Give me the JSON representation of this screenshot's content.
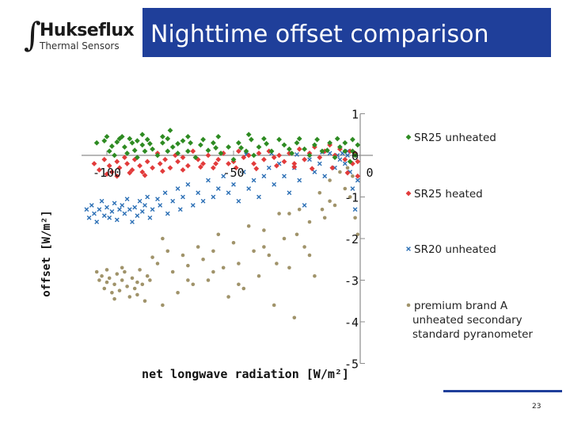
{
  "header": {
    "logo_name": "Hukseflux",
    "logo_sub": "Thermal Sensors",
    "title": "Nighttime offset comparison"
  },
  "page_number": "23",
  "colors": {
    "title_bar": "#1f3f9a",
    "sr25_unheated": "#2e8b22",
    "sr25_heated": "#e23b3b",
    "sr20_unheated": "#2b6fb5",
    "brand_a": "#a0936a"
  },
  "chart_data": {
    "type": "scatter",
    "title": "",
    "xlabel": "net longwave radiation [W/m²]",
    "ylabel": "offset [W/m²]",
    "xlim": [
      -110,
      5
    ],
    "ylim": [
      -5,
      1
    ],
    "x_ticks": [
      -100,
      -50,
      0
    ],
    "x_tick_labels": [
      "-100",
      "-50",
      "0"
    ],
    "y_ticks": [
      1,
      0,
      -1,
      -2,
      -3,
      -4,
      -5
    ],
    "y_tick_labels": [
      "1",
      "0",
      "-1",
      "-2",
      "-3",
      "-4",
      "-5"
    ],
    "grid": false,
    "legend_position": "right",
    "series": [
      {
        "name": "SR25 unheated",
        "marker": "diamond",
        "color": "#2e8b22",
        "points": [
          [
            -104,
            0.3
          ],
          [
            -101,
            0.35
          ],
          [
            -99,
            0.1
          ],
          [
            -97,
            0.0
          ],
          [
            -95,
            0.4
          ],
          [
            -93,
            0.2
          ],
          [
            -92,
            0.05
          ],
          [
            -90,
            0.3
          ],
          [
            -89,
            0.12
          ],
          [
            -88,
            -0.05
          ],
          [
            -86,
            0.25
          ],
          [
            -85,
            0.1
          ],
          [
            -84,
            0.38
          ],
          [
            -82,
            0.15
          ],
          [
            -80,
            0.0
          ],
          [
            -78,
            0.3
          ],
          [
            -76,
            0.1
          ],
          [
            -75,
            0.6
          ],
          [
            -74,
            0.2
          ],
          [
            -72,
            0.05
          ],
          [
            -70,
            0.35
          ],
          [
            -68,
            0.1
          ],
          [
            -65,
            -0.05
          ],
          [
            -63,
            0.25
          ],
          [
            -60,
            0.12
          ],
          [
            -58,
            0.3
          ],
          [
            -55,
            0.05
          ],
          [
            -52,
            0.2
          ],
          [
            -50,
            -0.1
          ],
          [
            -48,
            0.3
          ],
          [
            -45,
            0.1
          ],
          [
            -42,
            0.0
          ],
          [
            -40,
            0.2
          ],
          [
            -38,
            0.4
          ],
          [
            -35,
            0.1
          ],
          [
            -30,
            0.25
          ],
          [
            -27,
            0.05
          ],
          [
            -25,
            0.3
          ],
          [
            -22,
            0.15
          ],
          [
            -20,
            0.0
          ],
          [
            -18,
            0.25
          ],
          [
            -15,
            0.1
          ],
          [
            -12,
            0.3
          ],
          [
            -10,
            -0.05
          ],
          [
            -8,
            0.2
          ],
          [
            -6,
            0.1
          ],
          [
            -4,
            -0.15
          ],
          [
            -3,
            0.1
          ],
          [
            -2,
            0.0
          ],
          [
            -1,
            0.25
          ],
          [
            -94,
            0.45
          ],
          [
            -86,
            0.5
          ],
          [
            -78,
            0.45
          ],
          [
            -68,
            0.45
          ],
          [
            -56,
            0.45
          ],
          [
            -44,
            0.5
          ],
          [
            -100,
            0.45
          ],
          [
            -98,
            0.22
          ],
          [
            -96,
            0.32
          ],
          [
            -91,
            0.4
          ],
          [
            -88,
            0.35
          ],
          [
            -83,
            0.28
          ],
          [
            -76,
            0.4
          ],
          [
            -72,
            0.28
          ],
          [
            -67,
            0.3
          ],
          [
            -62,
            0.38
          ],
          [
            -57,
            0.18
          ],
          [
            -47,
            0.18
          ],
          [
            -43,
            0.38
          ],
          [
            -37,
            0.28
          ],
          [
            -32,
            0.38
          ],
          [
            -28,
            0.15
          ],
          [
            -24,
            0.4
          ],
          [
            -17,
            0.38
          ],
          [
            -13,
            0.12
          ],
          [
            -9,
            0.4
          ],
          [
            -6,
            0.3
          ],
          [
            -3,
            0.38
          ]
        ]
      },
      {
        "name": "SR25 heated",
        "marker": "diamond",
        "color": "#e23b3b",
        "points": [
          [
            -105,
            -0.2
          ],
          [
            -103,
            -0.35
          ],
          [
            -101,
            -0.1
          ],
          [
            -99,
            -0.25
          ],
          [
            -98,
            -0.4
          ],
          [
            -96,
            -0.15
          ],
          [
            -95,
            -0.3
          ],
          [
            -93,
            -0.05
          ],
          [
            -92,
            -0.2
          ],
          [
            -90,
            -0.35
          ],
          [
            -89,
            -0.1
          ],
          [
            -87,
            -0.25
          ],
          [
            -86,
            -0.4
          ],
          [
            -84,
            -0.15
          ],
          [
            -82,
            -0.3
          ],
          [
            -80,
            0.05
          ],
          [
            -79,
            -0.2
          ],
          [
            -77,
            -0.1
          ],
          [
            -75,
            -0.3
          ],
          [
            -73,
            0.0
          ],
          [
            -72,
            -0.15
          ],
          [
            -70,
            -0.05
          ],
          [
            -68,
            -0.25
          ],
          [
            -66,
            0.1
          ],
          [
            -64,
            -0.1
          ],
          [
            -62,
            -0.2
          ],
          [
            -60,
            0.0
          ],
          [
            -58,
            -0.3
          ],
          [
            -56,
            -0.1
          ],
          [
            -54,
            0.05
          ],
          [
            -52,
            -0.2
          ],
          [
            -50,
            -0.15
          ],
          [
            -48,
            0.1
          ],
          [
            -46,
            -0.05
          ],
          [
            -44,
            0.0
          ],
          [
            -42,
            -0.2
          ],
          [
            -40,
            0.05
          ],
          [
            -38,
            -0.1
          ],
          [
            -36,
            0.1
          ],
          [
            -34,
            -0.05
          ],
          [
            -32,
            0.0
          ],
          [
            -30,
            -0.15
          ],
          [
            -28,
            0.05
          ],
          [
            -26,
            -0.2
          ],
          [
            -24,
            0.15
          ],
          [
            -22,
            -0.1
          ],
          [
            -20,
            0.05
          ],
          [
            -18,
            0.2
          ],
          [
            -16,
            -0.05
          ],
          [
            -14,
            0.1
          ],
          [
            -12,
            0.25
          ],
          [
            -10,
            0.0
          ],
          [
            -8,
            0.15
          ],
          [
            -6,
            -0.1
          ],
          [
            -4,
            0.1
          ],
          [
            -3,
            -0.2
          ],
          [
            -2,
            0.05
          ],
          [
            -1,
            -0.15
          ],
          [
            -100,
            -0.45
          ],
          [
            -96,
            -0.5
          ],
          [
            -91,
            -0.42
          ],
          [
            -85,
            -0.48
          ],
          [
            -78,
            -0.38
          ],
          [
            -70,
            -0.35
          ],
          [
            -63,
            -0.28
          ],
          [
            -57,
            -0.2
          ],
          [
            -49,
            -0.3
          ],
          [
            -41,
            -0.32
          ],
          [
            -33,
            -0.25
          ],
          [
            -26,
            -0.28
          ],
          [
            -19,
            -0.32
          ],
          [
            -11,
            -0.3
          ],
          [
            -5,
            -0.42
          ],
          [
            -1,
            -0.5
          ]
        ]
      },
      {
        "name": "SR20 unheated",
        "marker": "x",
        "color": "#2b6fb5",
        "points": [
          [
            -108,
            -1.3
          ],
          [
            -107,
            -1.5
          ],
          [
            -106,
            -1.2
          ],
          [
            -105,
            -1.4
          ],
          [
            -104,
            -1.6
          ],
          [
            -103,
            -1.3
          ],
          [
            -102,
            -1.1
          ],
          [
            -101,
            -1.45
          ],
          [
            -100,
            -1.25
          ],
          [
            -99,
            -1.5
          ],
          [
            -98,
            -1.35
          ],
          [
            -97,
            -1.15
          ],
          [
            -96,
            -1.55
          ],
          [
            -95,
            -1.3
          ],
          [
            -94,
            -1.2
          ],
          [
            -93,
            -1.4
          ],
          [
            -92,
            -1.05
          ],
          [
            -91,
            -1.3
          ],
          [
            -90,
            -1.6
          ],
          [
            -89,
            -1.25
          ],
          [
            -88,
            -1.45
          ],
          [
            -87,
            -1.1
          ],
          [
            -86,
            -1.35
          ],
          [
            -85,
            -1.2
          ],
          [
            -84,
            -1.0
          ],
          [
            -83,
            -1.5
          ],
          [
            -82,
            -1.3
          ],
          [
            -80,
            -1.05
          ],
          [
            -79,
            -1.2
          ],
          [
            -77,
            -0.9
          ],
          [
            -76,
            -1.4
          ],
          [
            -74,
            -1.1
          ],
          [
            -72,
            -0.8
          ],
          [
            -71,
            -1.3
          ],
          [
            -70,
            -1.0
          ],
          [
            -68,
            -0.7
          ],
          [
            -66,
            -1.2
          ],
          [
            -64,
            -0.9
          ],
          [
            -62,
            -1.1
          ],
          [
            -60,
            -0.6
          ],
          [
            -58,
            -1.0
          ],
          [
            -56,
            -0.8
          ],
          [
            -54,
            -0.5
          ],
          [
            -52,
            -0.9
          ],
          [
            -50,
            -0.7
          ],
          [
            -48,
            -1.1
          ],
          [
            -46,
            -0.4
          ],
          [
            -44,
            -0.8
          ],
          [
            -42,
            -0.6
          ],
          [
            -40,
            -1.0
          ],
          [
            -38,
            -0.5
          ],
          [
            -36,
            -0.3
          ],
          [
            -34,
            -0.7
          ],
          [
            -32,
            -0.2
          ],
          [
            -30,
            -0.5
          ],
          [
            -28,
            -0.9
          ],
          [
            -26,
            -0.3
          ],
          [
            -24,
            -0.6
          ],
          [
            -22,
            -1.2
          ],
          [
            -20,
            -0.1
          ],
          [
            -18,
            -0.4
          ],
          [
            -16,
            -0.2
          ],
          [
            -14,
            -0.5
          ],
          [
            -12,
            0.05
          ],
          [
            -10,
            -0.3
          ],
          [
            -9,
            0.0
          ],
          [
            -8,
            -0.1
          ],
          [
            -7,
            0.05
          ],
          [
            -6,
            -0.2
          ],
          [
            -5,
            0.0
          ],
          [
            -4,
            -0.4
          ],
          [
            -3,
            -0.8
          ],
          [
            -2,
            -1.3
          ],
          [
            -1,
            -0.6
          ],
          [
            -5,
            0.1
          ],
          [
            -15,
            0.08
          ],
          [
            -25,
            0.02
          ],
          [
            -35,
            0.05
          ],
          [
            -45,
            0.02
          ]
        ]
      },
      {
        "name": "premium brand A unheated secondary standard pyranometer",
        "marker": "circle",
        "color": "#a0936a",
        "points": [
          [
            -104,
            -2.8
          ],
          [
            -103,
            -3.0
          ],
          [
            -102,
            -2.9
          ],
          [
            -101,
            -3.2
          ],
          [
            -100,
            -3.05
          ],
          [
            -99,
            -2.95
          ],
          [
            -98,
            -3.3
          ],
          [
            -97,
            -3.1
          ],
          [
            -96,
            -2.85
          ],
          [
            -95,
            -3.25
          ],
          [
            -94,
            -3.0
          ],
          [
            -93,
            -2.8
          ],
          [
            -92,
            -3.15
          ],
          [
            -91,
            -3.4
          ],
          [
            -90,
            -2.95
          ],
          [
            -89,
            -3.2
          ],
          [
            -88,
            -3.05
          ],
          [
            -87,
            -2.75
          ],
          [
            -86,
            -3.1
          ],
          [
            -85,
            -3.5
          ],
          [
            -84,
            -2.9
          ],
          [
            -83,
            -3.0
          ],
          [
            -82,
            -2.45
          ],
          [
            -80,
            -2.6
          ],
          [
            -78,
            -3.6
          ],
          [
            -76,
            -2.3
          ],
          [
            -74,
            -2.8
          ],
          [
            -72,
            -3.3
          ],
          [
            -70,
            -2.4
          ],
          [
            -68,
            -2.65
          ],
          [
            -66,
            -3.1
          ],
          [
            -64,
            -2.2
          ],
          [
            -62,
            -2.5
          ],
          [
            -60,
            -3.0
          ],
          [
            -58,
            -2.3
          ],
          [
            -56,
            -1.9
          ],
          [
            -54,
            -2.7
          ],
          [
            -52,
            -3.4
          ],
          [
            -50,
            -2.1
          ],
          [
            -48,
            -2.6
          ],
          [
            -46,
            -3.2
          ],
          [
            -44,
            -1.7
          ],
          [
            -42,
            -2.3
          ],
          [
            -40,
            -2.9
          ],
          [
            -38,
            -1.8
          ],
          [
            -36,
            -2.4
          ],
          [
            -34,
            -3.6
          ],
          [
            -32,
            -1.4
          ],
          [
            -30,
            -2.0
          ],
          [
            -28,
            -2.7
          ],
          [
            -26,
            -3.9
          ],
          [
            -24,
            -1.3
          ],
          [
            -22,
            -2.2
          ],
          [
            -20,
            -1.6
          ],
          [
            -18,
            -2.9
          ],
          [
            -16,
            -0.9
          ],
          [
            -14,
            -1.5
          ],
          [
            -12,
            -0.6
          ],
          [
            -10,
            -1.2
          ],
          [
            -8,
            -0.4
          ],
          [
            -6,
            -0.8
          ],
          [
            -5,
            -0.3
          ],
          [
            -4,
            -1.0
          ],
          [
            -3,
            -0.5
          ],
          [
            -2,
            -1.5
          ],
          [
            -1,
            -1.9
          ],
          [
            -12,
            -1.1
          ],
          [
            -15,
            -1.3
          ],
          [
            -20,
            -2.4
          ],
          [
            -25,
            -1.9
          ],
          [
            -28,
            -1.4
          ],
          [
            -33,
            -2.6
          ],
          [
            -38,
            -2.2
          ],
          [
            -48,
            -3.1
          ],
          [
            -58,
            -2.8
          ],
          [
            -68,
            -3.0
          ],
          [
            -78,
            -2.0
          ],
          [
            -88,
            -3.35
          ],
          [
            -94,
            -2.7
          ],
          [
            -97,
            -3.45
          ],
          [
            -100,
            -2.75
          ]
        ]
      }
    ]
  }
}
